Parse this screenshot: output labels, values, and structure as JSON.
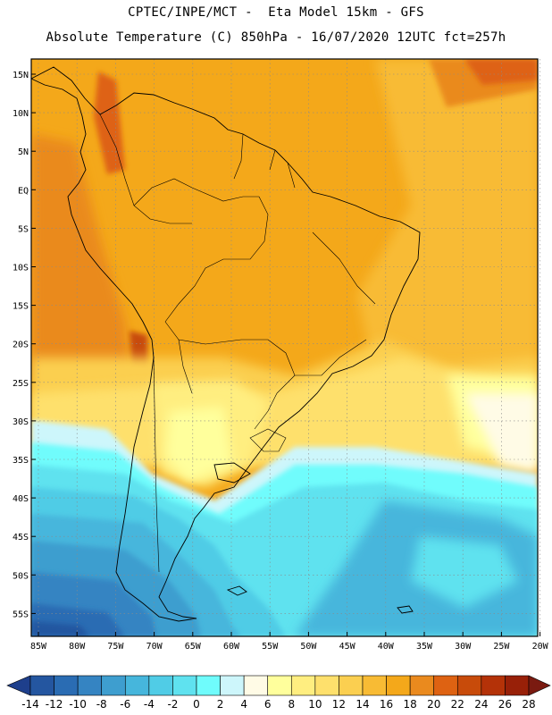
{
  "header": {
    "line1": "CPTEC/INPE/MCT -  Eta Model 15km - GFS",
    "line2": "Absolute Temperature (C) 850hPa - 16/07/2020 12UTC fct=257h"
  },
  "map": {
    "lat_labels": [
      "15N",
      "10N",
      "5N",
      "EQ",
      "5S",
      "10S",
      "15S",
      "20S",
      "25S",
      "30S",
      "35S",
      "40S",
      "45S",
      "50S",
      "55S"
    ],
    "lon_labels": [
      "85W",
      "80W",
      "75W",
      "70W",
      "65W",
      "60W",
      "55W",
      "50W",
      "45W",
      "40W",
      "35W",
      "30W",
      "25W",
      "20W"
    ]
  },
  "colorbar": {
    "labels": [
      "-14",
      "-12",
      "-10",
      "-8",
      "-6",
      "-4",
      "-2",
      "0",
      "2",
      "4",
      "6",
      "8",
      "10",
      "12",
      "14",
      "16",
      "18",
      "20",
      "22",
      "24",
      "26",
      "28"
    ],
    "colors": [
      "#1e3f8c",
      "#2456a0",
      "#2a6cb3",
      "#3584c2",
      "#3e9ecf",
      "#46b6dc",
      "#50cce6",
      "#5fe2ef",
      "#6ffcfc",
      "#cdf6fb",
      "#fffbe6",
      "#ffff9c",
      "#ffee80",
      "#fee06c",
      "#fbcf50",
      "#f8bb34",
      "#f4a81a",
      "#ea8a1e",
      "#de6212",
      "#c84b0a",
      "#b43208",
      "#982008",
      "#7a1a10"
    ]
  }
}
